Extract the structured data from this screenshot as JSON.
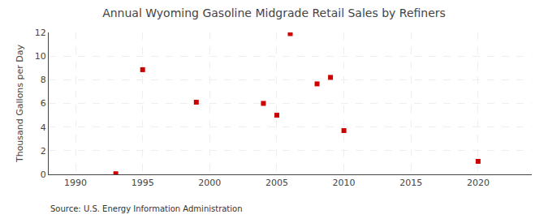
{
  "chart_data": {
    "type": "scatter",
    "title": "Annual Wyoming Gasoline Midgrade Retail Sales by Refiners",
    "ylabel": "Thousand Gallons per Day",
    "annotations": [
      "Source: U.S. Energy Information Administration"
    ],
    "x": [
      1993,
      1995,
      1999,
      2004,
      2005,
      2006,
      2008,
      2009,
      2010,
      2020
    ],
    "values": [
      0.05,
      8.85,
      6.1,
      6.0,
      5.0,
      11.9,
      7.65,
      8.2,
      3.7,
      1.1
    ],
    "color": "#cc0000",
    "marker": "square",
    "xlim": [
      1988,
      2024
    ],
    "ylim": [
      0,
      12
    ],
    "xticks": [
      1990,
      1995,
      2000,
      2005,
      2010,
      2015,
      2020
    ],
    "yticks": [
      0,
      2,
      4,
      6,
      8,
      10,
      12
    ],
    "grid": true
  }
}
